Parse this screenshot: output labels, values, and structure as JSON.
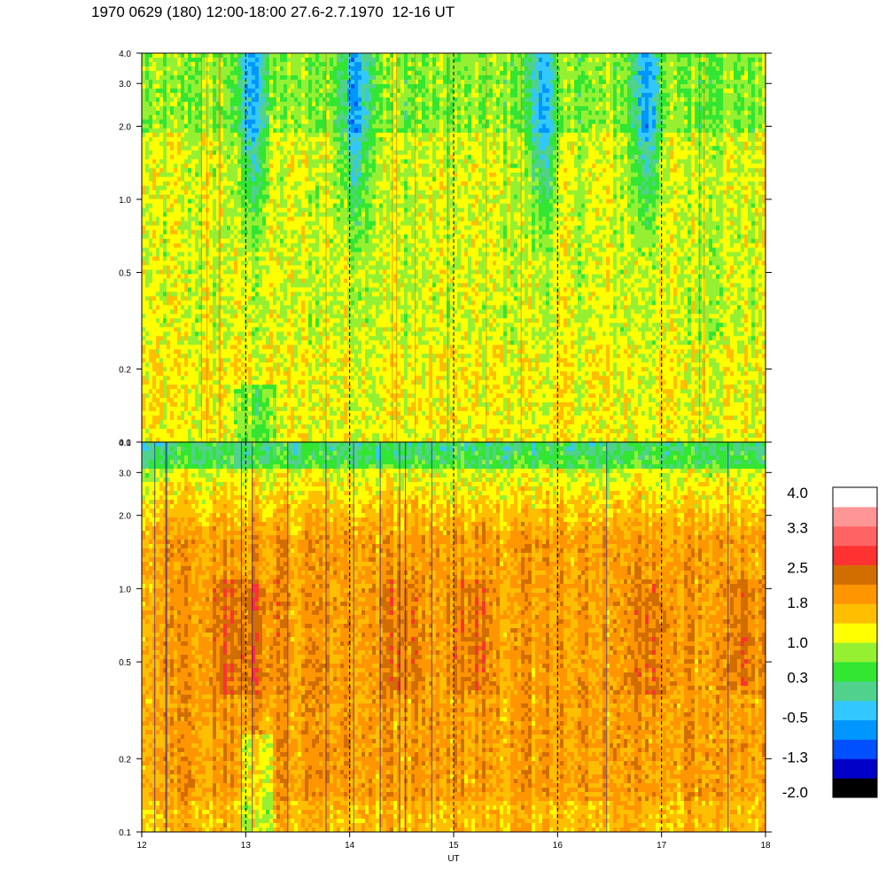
{
  "title": "1970 0629 (180) 12:00-18:00 27.6-2.7.1970  12-16 UT",
  "colors": {
    "palette": [
      "#000000",
      "#0000c8",
      "#0050ff",
      "#0096ff",
      "#32c8ff",
      "#50d28c",
      "#32e632",
      "#96f032",
      "#ffff00",
      "#ffbe00",
      "#ff9600",
      "#d26e00",
      "#ff3232",
      "#ff6464",
      "#ff9696",
      "#ffffff"
    ],
    "divider": "#000000",
    "grid": "#000000"
  },
  "chart_data": [
    {
      "type": "heatmap",
      "name_hint": "upper panel",
      "x_range": [
        12,
        18
      ],
      "y_scale": "log",
      "y_range": [
        0.1,
        4.0
      ],
      "y_ticks": [
        "4.0",
        "3.0",
        "2.0",
        "1.0",
        "0.5",
        "0.2",
        "0.1"
      ],
      "y_tick_values": [
        4.0,
        3.0,
        2.0,
        1.0,
        0.5,
        0.2,
        0.1
      ],
      "dominant_levels": "green-yellow (approx. 0.3 to 1.0), with blue patches (approx. -1.3 to -0.5) near 13, 14, 15.9 and 16.9 UT above 1.0",
      "vertical_dashed_lines_at": [
        13,
        14,
        15,
        16,
        17
      ]
    },
    {
      "type": "heatmap",
      "name_hint": "lower panel",
      "x_range": [
        12,
        18
      ],
      "y_scale": "log",
      "y_range": [
        0.1,
        4.0
      ],
      "y_ticks": [
        "4.0",
        "3.0",
        "2.0",
        "1.0",
        "0.5",
        "0.2",
        "0.1"
      ],
      "y_tick_values": [
        4.0,
        3.0,
        2.0,
        1.0,
        0.5,
        0.2,
        0.1
      ],
      "dominant_levels": "orange (approx. 1.8 to 2.5), dark orange bands near 0.5-1.0, yellow-green near 4.0",
      "vertical_dashed_lines_at": [
        13,
        14,
        15,
        16,
        17
      ]
    }
  ],
  "x_axis": {
    "label": "UT",
    "ticks": [
      "12",
      "13",
      "14",
      "15",
      "16",
      "17",
      "18"
    ],
    "tick_values": [
      12,
      13,
      14,
      15,
      16,
      17,
      18
    ]
  },
  "colorbar": {
    "labels": [
      "4.0",
      "3.3",
      "2.5",
      "1.8",
      "1.0",
      "0.3",
      "-0.5",
      "-1.3",
      "-2.0"
    ],
    "label_values": [
      4.0,
      3.3,
      2.5,
      1.8,
      1.0,
      0.3,
      -0.5,
      -1.3,
      -2.0
    ],
    "range": [
      -2.0,
      4.0
    ]
  }
}
